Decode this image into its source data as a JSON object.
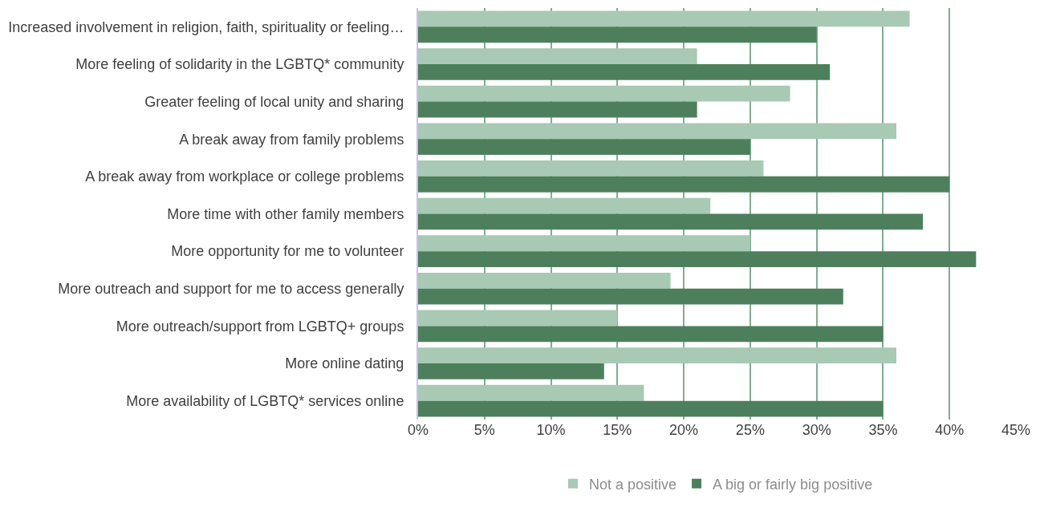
{
  "chart_data": {
    "type": "bar",
    "orientation": "horizontal",
    "categories": [
      "Increased involvement in religion, faith, spirituality or feeling…",
      "More feeling of solidarity in the LGBTQ* community",
      "Greater feeling of local unity and sharing",
      "A break away from family problems",
      "A break away from workplace or college problems",
      "More time with other family members",
      "More opportunity for me to volunteer",
      "More outreach and support for me to access generally",
      "More outreach/support from LGBTQ+ groups",
      "More online dating",
      "More availability of LGBTQ* services online"
    ],
    "series": [
      {
        "name": "Not a positive",
        "color": "#a8c9b4",
        "values": [
          37,
          21,
          28,
          36,
          26,
          22,
          25,
          19,
          15,
          36,
          17
        ]
      },
      {
        "name": "A big or fairly big positive",
        "color": "#4e7f5d",
        "values": [
          30,
          31,
          21,
          25,
          40,
          38,
          42,
          32,
          35,
          14,
          35
        ]
      }
    ],
    "xlim": [
      0,
      45
    ],
    "xticks": [
      {
        "value": 0,
        "label": "0%"
      },
      {
        "value": 5,
        "label": "5%"
      },
      {
        "value": 10,
        "label": "10%"
      },
      {
        "value": 15,
        "label": "15%"
      },
      {
        "value": 20,
        "label": "20%"
      },
      {
        "value": 25,
        "label": "25%"
      },
      {
        "value": 30,
        "label": "30%"
      },
      {
        "value": 35,
        "label": "35%"
      },
      {
        "value": 40,
        "label": "40%"
      },
      {
        "value": 45,
        "label": "45%"
      }
    ],
    "grid": "x",
    "legend": "bottom"
  }
}
